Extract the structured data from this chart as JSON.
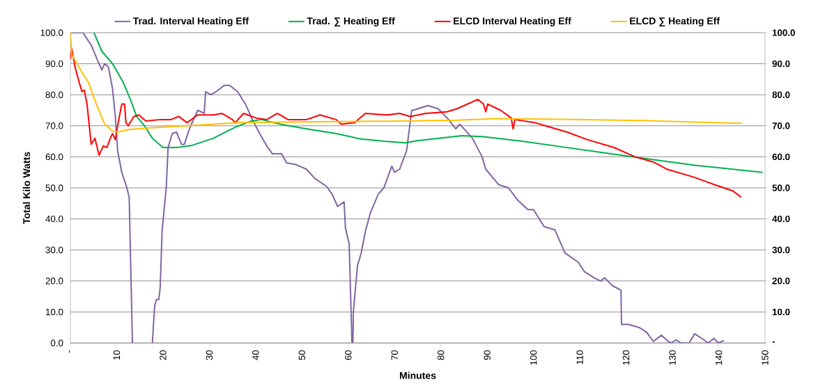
{
  "chart_data": {
    "type": "line",
    "xlabel": "Minutes",
    "ylabel": "Total Kilo Watts",
    "xlim": [
      0,
      150
    ],
    "xticks": [
      {
        "value": 0,
        "label": "-"
      },
      10,
      20,
      30,
      40,
      50,
      60,
      70,
      80,
      90,
      100,
      110,
      120,
      130,
      140,
      150
    ],
    "ylim": [
      0,
      100
    ],
    "yticks": [
      {
        "value": 0,
        "label": "0.0"
      },
      {
        "value": 10,
        "label": "10.0"
      },
      {
        "value": 20,
        "label": "20.0"
      },
      {
        "value": 30,
        "label": "30.0"
      },
      {
        "value": 40,
        "label": "40.0"
      },
      {
        "value": 50,
        "label": "50.0"
      },
      {
        "value": 60,
        "label": "60.0"
      },
      {
        "value": 70,
        "label": "70.0"
      },
      {
        "value": 80,
        "label": "80.0"
      },
      {
        "value": 90,
        "label": "90.0"
      },
      {
        "value": 100,
        "label": "100.0"
      }
    ],
    "y2lim": [
      0,
      100
    ],
    "y2ticks": [
      {
        "value": 0,
        "label": "-"
      },
      {
        "value": 10,
        "label": "10.0"
      },
      {
        "value": 20,
        "label": "20.0"
      },
      {
        "value": 30,
        "label": "30.0"
      },
      {
        "value": 40,
        "label": "40.0"
      },
      {
        "value": 50,
        "label": "50.0"
      },
      {
        "value": 60,
        "label": "60.0"
      },
      {
        "value": 70,
        "label": "70.0"
      },
      {
        "value": 80,
        "label": "80.0"
      },
      {
        "value": 90,
        "label": "90.0"
      },
      {
        "value": 100,
        "label": "100.0"
      }
    ],
    "grid": "y",
    "legend": "top",
    "series": [
      {
        "name": "Trad. Interval Heating Eff",
        "color": "#8064a2",
        "x": [
          0,
          2.7,
          4.5,
          5.9,
          6.8,
          7.4,
          8.2,
          9.1,
          9.7,
          10.2,
          11.1,
          12.2,
          12.7,
          13.4,
          15.5,
          17.7,
          18.2,
          18.6,
          19.1,
          19.4,
          19.8,
          20.3,
          20.7,
          21.1,
          22,
          22.9,
          24,
          24.6,
          25.7,
          27.5,
          28.9,
          29.2,
          30.3,
          31.5,
          33.2,
          34.4,
          36.1,
          37.8,
          39.3,
          40.7,
          42.4,
          43.6,
          45.6,
          46.7,
          48.7,
          51,
          52.8,
          55.3,
          56.5,
          57.7,
          59.1,
          59.4,
          60.2,
          60.8,
          61,
          61.1,
          62,
          62.8,
          63.7,
          64.8,
          66.5,
          67.7,
          69.4,
          70,
          71.1,
          72.6,
          73.7,
          74,
          77.2,
          79.4,
          81.7,
          83.2,
          84.1,
          86.8,
          88.9,
          89.7,
          92.5,
          94.6,
          96.6,
          98.8,
          100,
          102.3,
          104.6,
          106.8,
          109.7,
          111,
          113.1,
          114.5,
          115.4,
          117,
          118.9,
          119,
          120.5,
          122.8,
          124.4,
          125.9,
          127.6,
          129.1,
          129.7,
          130.8,
          131.9,
          133.6,
          134.8,
          136.8,
          137.7,
          139,
          139.9,
          141.1
        ],
        "values": [
          100,
          100,
          96,
          91,
          88,
          90,
          89,
          82,
          73,
          62,
          55,
          50,
          47,
          0,
          null,
          0,
          12,
          14,
          14,
          18,
          36,
          44,
          50,
          63,
          67.5,
          68,
          64,
          64,
          69,
          75,
          74,
          81,
          80,
          81,
          83,
          83,
          81,
          77,
          72,
          68,
          63.5,
          61,
          61,
          58,
          57.5,
          56,
          53,
          50.5,
          48,
          44,
          45.5,
          37,
          32,
          0,
          0,
          10,
          25,
          29,
          36,
          42,
          48,
          50,
          57,
          55,
          56,
          62,
          75,
          75,
          76.5,
          75.5,
          72,
          69,
          70.5,
          66,
          60,
          56,
          51,
          50,
          46,
          43,
          43,
          37.5,
          36.5,
          29,
          26,
          23,
          21,
          20,
          21,
          18.5,
          17,
          6,
          6,
          5,
          3.5,
          0.5,
          2.5,
          0.5,
          0,
          1,
          0,
          0,
          3,
          1,
          0,
          1.5,
          0,
          0.8
        ]
      },
      {
        "name": "Trad. ∑ Heating Eff",
        "color": "#00b050",
        "x": [
          5.1,
          6.8,
          9.1,
          11.4,
          13.1,
          14.3,
          16,
          17.7,
          20,
          22.9,
          26.3,
          30.9,
          35.5,
          39,
          41.3,
          45.3,
          51,
          57.4,
          62.5,
          67.7,
          72.3,
          74.9,
          84.6,
          89.2,
          97.6,
          106.2,
          114.8,
          123.4,
          134.8,
          149.5
        ],
        "values": [
          100,
          94,
          90,
          84,
          78,
          73,
          70,
          66,
          63,
          63,
          63.7,
          66,
          69.5,
          71.5,
          72,
          70.5,
          69,
          67.5,
          65.8,
          65,
          64.5,
          65.2,
          66.8,
          66.5,
          65,
          63.2,
          61.4,
          59.6,
          57.3,
          55
        ]
      },
      {
        "name": "ELCD Interval Heating Eff",
        "color": "#ff0000",
        "x": [
          0,
          0.3,
          1,
          1.9,
          2.5,
          3,
          3.6,
          4.5,
          5.3,
          6.2,
          7.1,
          7.9,
          8.5,
          9.1,
          9.7,
          10.2,
          11.1,
          11.7,
          12,
          12.5,
          13.7,
          14.8,
          16.3,
          19.4,
          21.7,
          23.4,
          25.2,
          27.5,
          30.9,
          32.7,
          35,
          35.6,
          37.4,
          40.1,
          42.4,
          44.7,
          47,
          51,
          53.9,
          57.4,
          58.5,
          61.4,
          63.7,
          68.3,
          71.1,
          73.4,
          76.7,
          81.3,
          83.5,
          88,
          89.2,
          89.7,
          90.1,
          92.9,
          95.2,
          95.6,
          96,
          100.3,
          103.7,
          107.2,
          111.7,
          117.4,
          121.9,
          125.9,
          128.8,
          134.5,
          139.1,
          143.1,
          144.8
        ],
        "values": [
          91.5,
          95,
          89,
          84,
          81,
          81.5,
          77,
          64,
          66,
          60.5,
          63.5,
          63,
          65.5,
          67.5,
          65.5,
          70,
          77,
          77,
          71,
          70,
          73,
          73.5,
          71.5,
          72,
          72,
          73,
          71,
          73.5,
          73.5,
          74,
          72,
          71,
          74,
          72.5,
          72,
          74,
          72,
          72,
          73.5,
          72,
          70.5,
          71,
          74,
          73.5,
          74,
          73,
          74,
          74.5,
          75.5,
          78.5,
          77,
          74.5,
          77,
          75,
          72.5,
          69,
          72,
          71,
          69.5,
          68,
          65.5,
          63,
          60,
          58.3,
          56,
          53.5,
          51,
          49,
          47
        ]
      },
      {
        "name": "ELCD ∑ Heating Eff",
        "color": "#ffc000",
        "x": [
          0,
          0.3,
          2.2,
          3.9,
          5.6,
          7.4,
          9.1,
          10.2,
          12.5,
          16.6,
          25.2,
          36.6,
          53.9,
          71.1,
          83.5,
          91.8,
          106.2,
          123.4,
          134.8,
          145
        ],
        "values": [
          100,
          93,
          88,
          84,
          77,
          70.5,
          68.3,
          68,
          68.8,
          69.3,
          70,
          71,
          71.3,
          71.5,
          71.8,
          72.3,
          72.1,
          71.7,
          71.2,
          70.8
        ]
      }
    ]
  }
}
